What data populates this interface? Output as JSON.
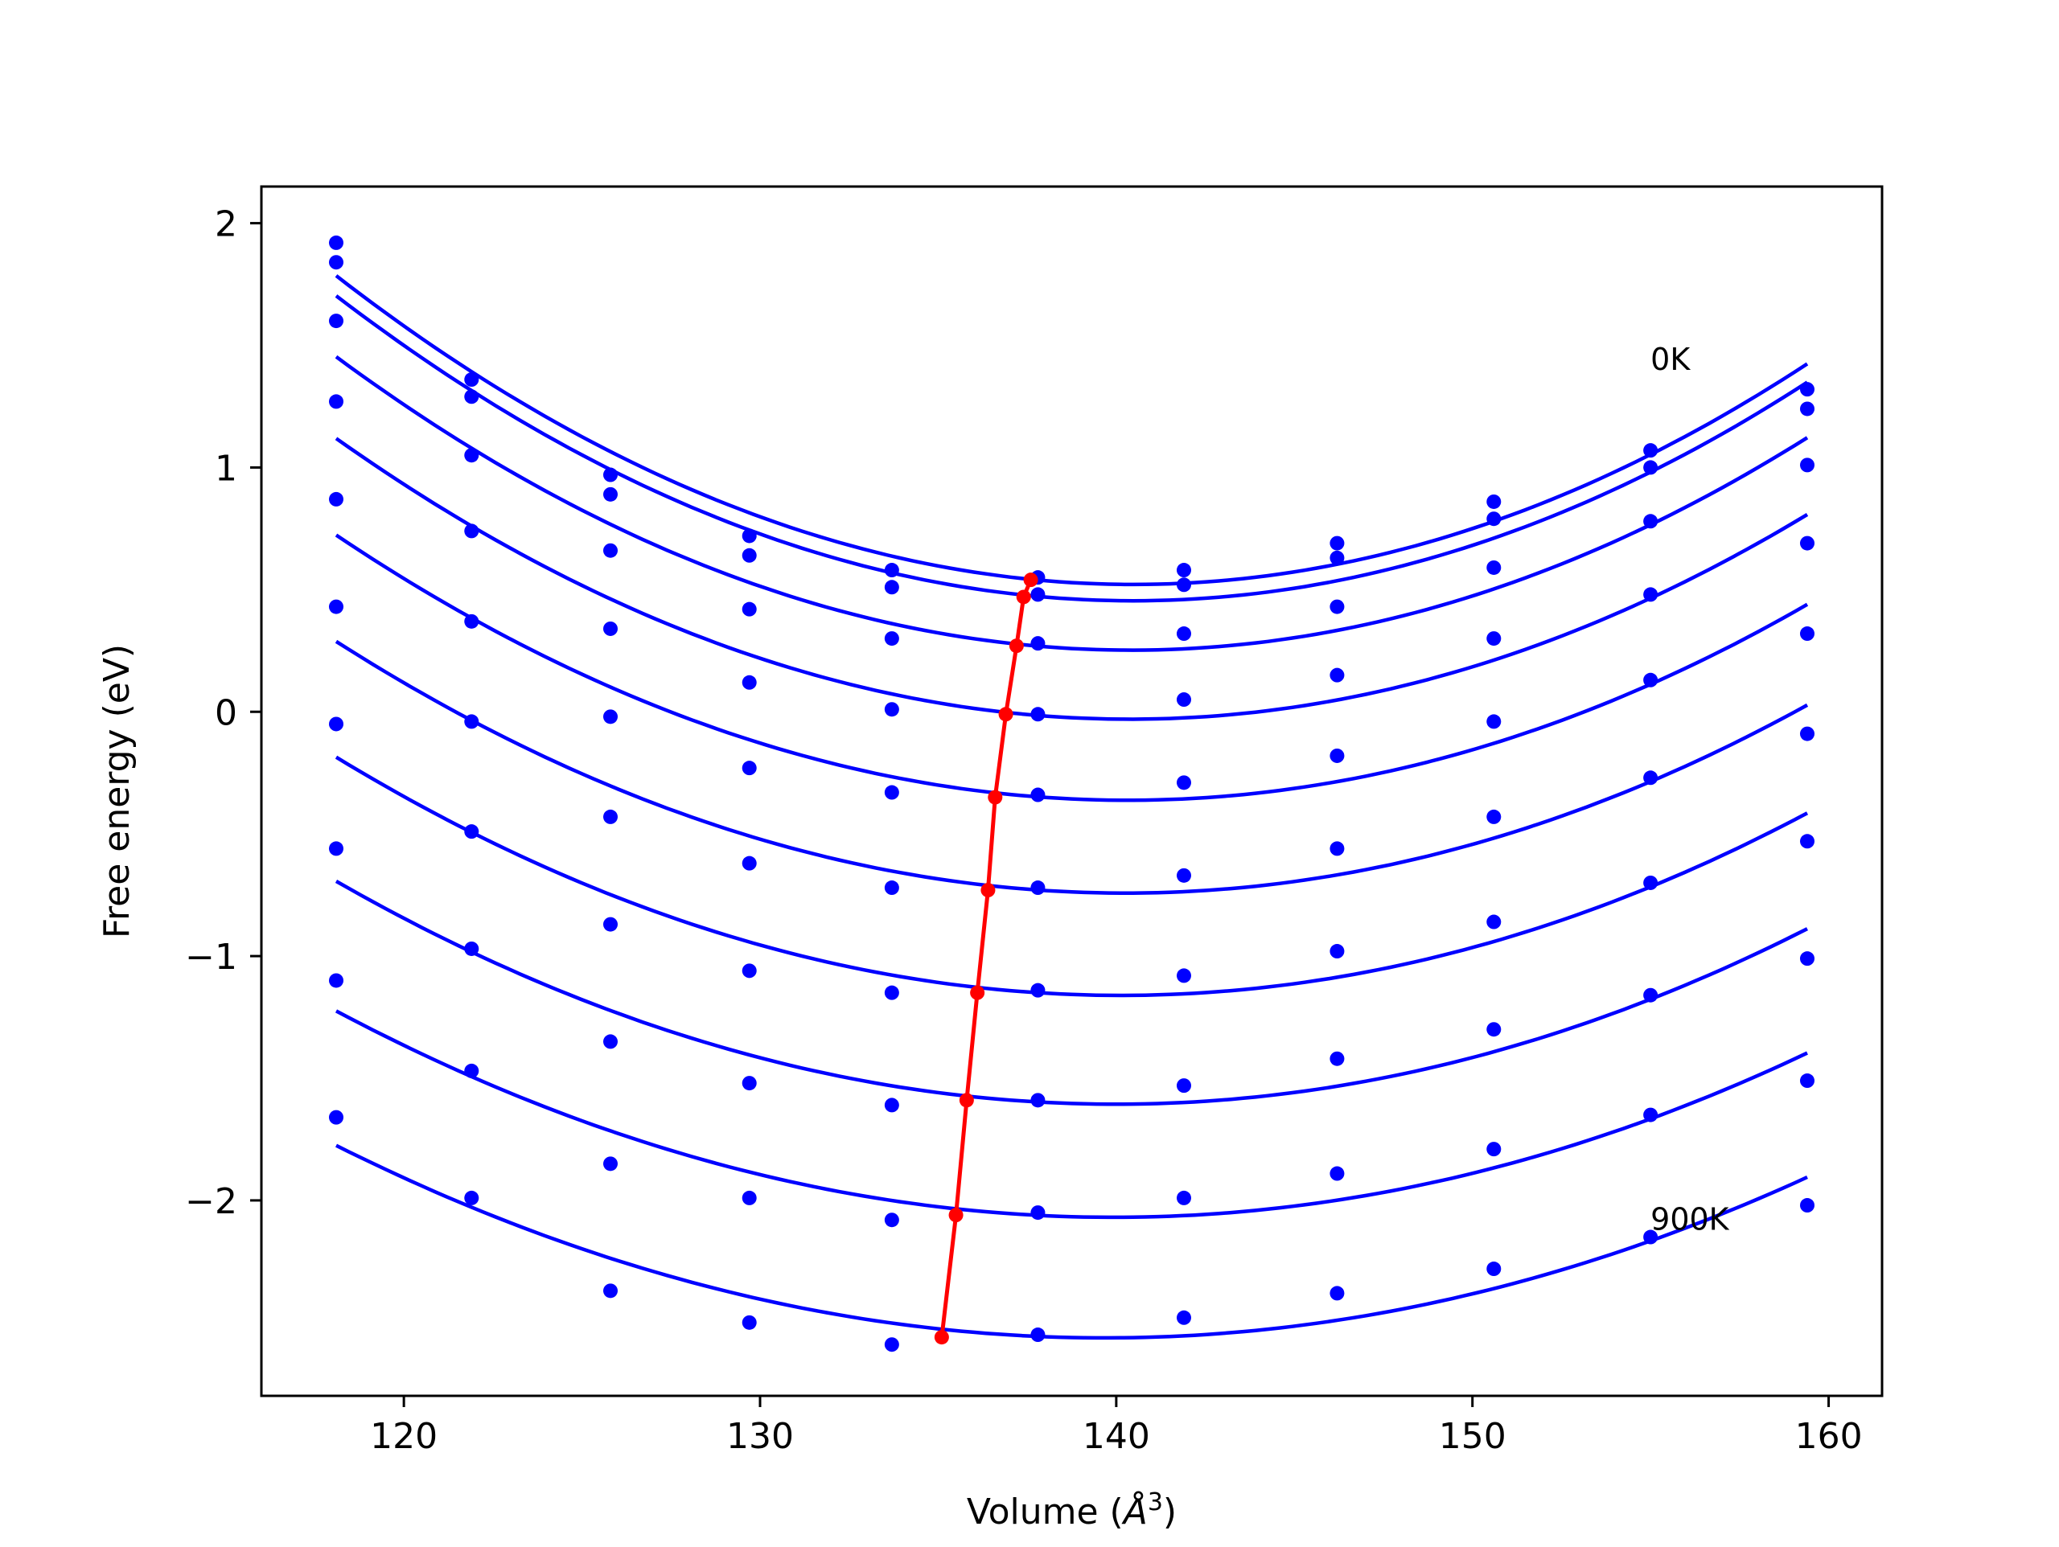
{
  "chart_data": {
    "type": "line",
    "xlabel_main": "Volume (",
    "xlabel_unit_base": "Å",
    "xlabel_unit_sup": "3",
    "xlabel_close": ")",
    "ylabel": "Free energy (eV)",
    "xlim": [
      116,
      161.5
    ],
    "ylim": [
      -2.8,
      2.15
    ],
    "xticks": [
      120,
      130,
      140,
      150,
      160
    ],
    "xtick_labels": [
      "120",
      "130",
      "140",
      "150",
      "160"
    ],
    "yticks": [
      -2,
      -1,
      0,
      1,
      2
    ],
    "ytick_labels": [
      "−2",
      "−1",
      "0",
      "1",
      "2"
    ],
    "grid": false,
    "annotations": [
      {
        "text": "0K",
        "x": 155.0,
        "y": 1.4
      },
      {
        "text": "900K",
        "x": 155.0,
        "y": -2.12
      }
    ],
    "colors": {
      "curves": "#0000ff",
      "minimum_path": "#ff0000",
      "axes": "#000000"
    },
    "x": [
      118.1,
      121.9,
      125.8,
      129.7,
      133.7,
      137.8,
      141.9,
      146.2,
      150.6,
      155.0,
      159.4
    ],
    "series": [
      {
        "values": [
          1.92,
          1.36,
          0.97,
          0.72,
          0.58,
          0.55,
          0.58,
          0.69,
          0.86,
          1.07,
          1.32
        ]
      },
      {
        "values": [
          1.84,
          1.29,
          0.89,
          0.64,
          0.51,
          0.48,
          0.52,
          0.63,
          0.79,
          1.0,
          1.24
        ]
      },
      {
        "values": [
          1.6,
          1.05,
          0.66,
          0.42,
          0.3,
          0.28,
          0.32,
          0.43,
          0.59,
          0.78,
          1.01
        ]
      },
      {
        "values": [
          1.27,
          0.74,
          0.34,
          0.12,
          0.01,
          -0.01,
          0.05,
          0.15,
          0.3,
          0.48,
          0.69
        ]
      },
      {
        "values": [
          0.87,
          0.37,
          -0.02,
          -0.23,
          -0.33,
          -0.34,
          -0.29,
          -0.18,
          -0.04,
          0.13,
          0.32
        ]
      },
      {
        "values": [
          0.43,
          -0.04,
          -0.43,
          -0.62,
          -0.72,
          -0.72,
          -0.67,
          -0.56,
          -0.43,
          -0.27,
          -0.09
        ]
      },
      {
        "values": [
          -0.05,
          -0.49,
          -0.87,
          -1.06,
          -1.15,
          -1.14,
          -1.08,
          -0.98,
          -0.86,
          -0.7,
          -0.53
        ]
      },
      {
        "values": [
          -0.56,
          -0.97,
          -1.35,
          -1.52,
          -1.61,
          -1.59,
          -1.53,
          -1.42,
          -1.3,
          -1.16,
          -1.01
        ]
      },
      {
        "values": [
          -1.1,
          -1.47,
          -1.85,
          -1.99,
          -2.08,
          -2.05,
          -1.99,
          -1.89,
          -1.79,
          -1.65,
          -1.51
        ]
      },
      {
        "values": [
          -1.66,
          -1.99,
          -2.37,
          -2.5,
          -2.59,
          -2.55,
          -2.48,
          -2.38,
          -2.28,
          -2.15,
          -2.02
        ]
      }
    ],
    "minimum_path": {
      "x": [
        137.6,
        137.4,
        137.2,
        136.9,
        136.6,
        136.4,
        136.1,
        135.8,
        135.5,
        135.1
      ],
      "y": [
        0.54,
        0.47,
        0.27,
        -0.01,
        -0.35,
        -0.73,
        -1.15,
        -1.59,
        -2.06,
        -2.56
      ]
    }
  }
}
